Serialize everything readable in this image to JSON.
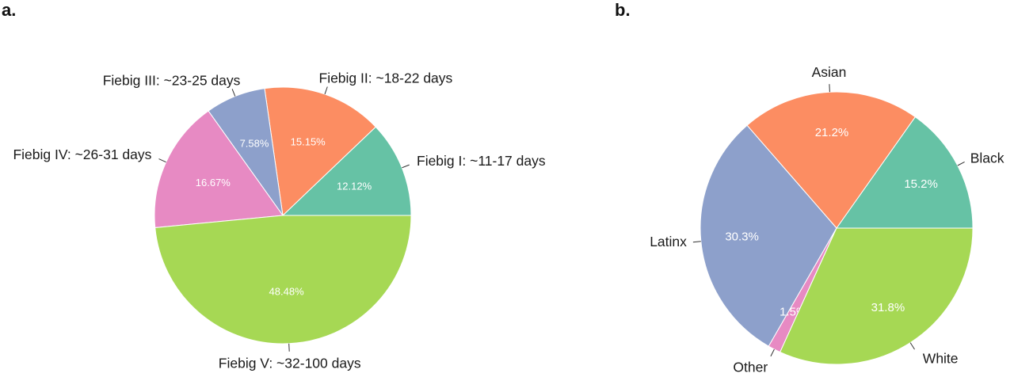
{
  "panels": [
    {
      "label": "a."
    },
    {
      "label": "b."
    }
  ],
  "chart_data": [
    {
      "type": "pie",
      "panel": "a.",
      "slices": [
        {
          "label": "Fiebig I: ~11-17 days",
          "value": 12.12,
          "value_label": "12.12%",
          "color": "#66c2a5"
        },
        {
          "label": "Fiebig II: ~18-22 days",
          "value": 15.15,
          "value_label": "15.15%",
          "color": "#fc8d62"
        },
        {
          "label": "Fiebig III: ~23-25 days",
          "value": 7.58,
          "value_label": "7.58%",
          "color": "#8da0cb"
        },
        {
          "label": "Fiebig IV: ~26-31 days",
          "value": 16.67,
          "value_label": "16.67%",
          "color": "#e78ac3"
        },
        {
          "label": "Fiebig V: ~32-100 days",
          "value": 48.48,
          "value_label": "48.48%",
          "color": "#a6d854"
        }
      ]
    },
    {
      "type": "pie",
      "panel": "b.",
      "slices": [
        {
          "label": "Black",
          "value": 15.2,
          "value_label": "15.2%",
          "color": "#66c2a5"
        },
        {
          "label": "Asian",
          "value": 21.2,
          "value_label": "21.2%",
          "color": "#fc8d62"
        },
        {
          "label": "Latinx",
          "value": 30.3,
          "value_label": "30.3%",
          "color": "#8da0cb"
        },
        {
          "label": "Other",
          "value": 1.5,
          "value_label": "1.5%",
          "color": "#e78ac3"
        },
        {
          "label": "White",
          "value": 31.8,
          "value_label": "31.8%",
          "color": "#a6d854"
        }
      ]
    }
  ]
}
